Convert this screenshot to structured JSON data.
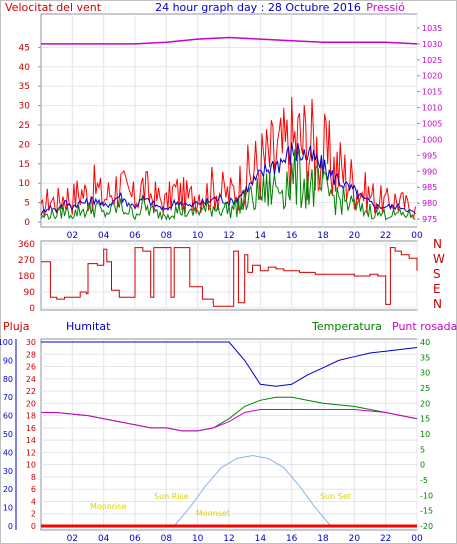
{
  "header": {
    "left_label": "Velocitat del vent",
    "title": "24 hour graph day : 28 Octubre 2016",
    "right_label": "Pressió"
  },
  "colors": {
    "wind": "#ff0000",
    "gust_avg": "#0000cc",
    "wind_green": "#008000",
    "pressure": "#cc00cc",
    "humidity": "#0000cc",
    "temperature": "#008000",
    "dewpoint": "#cc00cc",
    "solar": "#88b4f0",
    "rain": "#ff0000",
    "annotations": "#e0d000",
    "frame": "#9090a0"
  },
  "x_ticks": [
    "02",
    "04",
    "06",
    "08",
    "10",
    "12",
    "14",
    "16",
    "18",
    "20",
    "22",
    "00"
  ],
  "wind_axis": {
    "ticks": [
      "0",
      "5",
      "10",
      "15",
      "20",
      "25",
      "30",
      "35",
      "40",
      "45"
    ]
  },
  "pressure_axis": {
    "ticks": [
      "975",
      "980",
      "985",
      "990",
      "995",
      "1000",
      "1005",
      "1010",
      "1015",
      "1020",
      "1025",
      "1030",
      "1035"
    ]
  },
  "direction_axis": {
    "ticks": [
      "0",
      "90",
      "180",
      "270",
      "360"
    ],
    "compass": [
      "N",
      "W",
      "S",
      "E",
      "N"
    ]
  },
  "bottom_header": {
    "rain": "Pluja",
    "humidity": "Humitat",
    "temperature": "Temperatura",
    "dewpoint": "Punt rosada"
  },
  "humidity_axis": {
    "ticks": [
      "0",
      "10",
      "20",
      "30",
      "40",
      "50",
      "60",
      "70",
      "80",
      "90",
      "100"
    ]
  },
  "rain_axis": {
    "ticks": [
      "0",
      "2",
      "4",
      "6",
      "8",
      "10",
      "12",
      "14",
      "16",
      "18",
      "20",
      "22",
      "24",
      "26",
      "28",
      "30"
    ]
  },
  "temp_axis": {
    "ticks": [
      "-20",
      "-15",
      "-10",
      "-5",
      "0",
      "5",
      "10",
      "15",
      "20",
      "25",
      "30",
      "35",
      "40"
    ]
  },
  "annotations": {
    "moonrise": "Moonrise",
    "sunrise": "Sun Rise",
    "moonset": "Moonset",
    "sunset": "Sun Set"
  },
  "chart_data": [
    {
      "type": "line",
      "title": "24 hour graph day : 28 Octubre 2016",
      "x_unit": "hour",
      "xlim": [
        0,
        24
      ],
      "ylabel": "Velocitat del vent",
      "ylim": [
        0,
        50
      ],
      "y2label": "Pressió",
      "y2lim": [
        972.5,
        1037.5
      ],
      "series": [
        {
          "x": [
            0,
            0.5,
            1,
            1.5,
            2,
            2.5,
            3,
            3.5,
            4,
            4.5,
            5,
            5.5,
            6,
            6.5,
            7,
            7.5,
            8,
            8.5,
            9,
            9.5,
            10,
            10.5,
            11,
            11.5,
            12,
            12.5,
            13,
            13.5,
            14,
            14.5,
            15,
            15.5,
            16,
            16.5,
            17,
            17.5,
            18,
            18.5,
            19,
            19.5,
            20,
            20.5,
            21,
            21.5,
            22,
            22.5,
            23,
            23.5,
            24
          ],
          "values": [
            3,
            6,
            5,
            7,
            6,
            8,
            7,
            9,
            6,
            8,
            10,
            7,
            6,
            9,
            7,
            6,
            5,
            8,
            7,
            6,
            8,
            7,
            9,
            8,
            7,
            9,
            11,
            13,
            15,
            16,
            17,
            18,
            20,
            21,
            20,
            19,
            17,
            15,
            14,
            12,
            10,
            8,
            7,
            6,
            5,
            6,
            5,
            4,
            3
          ],
          "color": "#ff0000"
        },
        {
          "x": [
            0,
            0.5,
            1,
            1.5,
            2,
            2.5,
            3,
            3.5,
            4,
            4.5,
            5,
            5.5,
            6,
            6.5,
            7,
            7.5,
            8,
            8.5,
            9,
            9.5,
            10,
            10.5,
            11,
            11.5,
            12,
            12.5,
            13,
            13.5,
            14,
            14.5,
            15,
            15.5,
            16,
            16.5,
            17,
            17.5,
            18,
            18.5,
            19,
            19.5,
            20,
            20.5,
            21,
            21.5,
            22,
            22.5,
            23,
            23.5,
            24
          ],
          "values": [
            2,
            4,
            3,
            5,
            4,
            5,
            5,
            6,
            4,
            5,
            7,
            5,
            4,
            6,
            5,
            4,
            3,
            5,
            5,
            4,
            5,
            5,
            6,
            6,
            5,
            6,
            8,
            10,
            12,
            14,
            15,
            16,
            18,
            18,
            17,
            16,
            14,
            12,
            11,
            9,
            8,
            6,
            5,
            4,
            4,
            4,
            4,
            3,
            2
          ],
          "color": "#0000cc"
        },
        {
          "x": [
            0,
            0.5,
            1,
            1.5,
            2,
            2.5,
            3,
            3.5,
            4,
            4.5,
            5,
            5.5,
            6,
            6.5,
            7,
            7.5,
            8,
            8.5,
            9,
            9.5,
            10,
            10.5,
            11,
            11.5,
            12,
            12.5,
            13,
            13.5,
            14,
            14.5,
            15,
            15.5,
            16,
            16.5,
            17,
            17.5,
            18,
            18.5,
            19,
            19.5,
            20,
            20.5,
            21,
            21.5,
            22,
            22.5,
            23,
            23.5,
            24
          ],
          "values": [
            1,
            2,
            2,
            3,
            2,
            3,
            3,
            4,
            2,
            3,
            4,
            3,
            2,
            4,
            3,
            2,
            2,
            3,
            3,
            2,
            3,
            3,
            4,
            4,
            3,
            4,
            5,
            6,
            7,
            8,
            9,
            10,
            11,
            11,
            10,
            9,
            8,
            7,
            6,
            5,
            4,
            3,
            3,
            2,
            2,
            2,
            2,
            2,
            1
          ],
          "color": "#008000"
        },
        {
          "name": "Pressió",
          "axis": "y2",
          "x": [
            0,
            2,
            4,
            6,
            8,
            10,
            12,
            14,
            16,
            18,
            20,
            22,
            24
          ],
          "values": [
            1030,
            1030,
            1030,
            1030,
            1030.5,
            1031.5,
            1032,
            1031.5,
            1031,
            1030.5,
            1030.5,
            1030.5,
            1030
          ],
          "color": "#cc00cc"
        }
      ]
    },
    {
      "type": "line",
      "x_unit": "hour",
      "xlim": [
        0,
        24
      ],
      "ylim": [
        0,
        360
      ],
      "series": [
        {
          "x": [
            0,
            0.3,
            0.6,
            1,
            1.5,
            2,
            2.5,
            2.9,
            3,
            3.2,
            3.6,
            4,
            4.2,
            4.5,
            5,
            5.5,
            6,
            6.3,
            6.5,
            7,
            7.2,
            7.5,
            8,
            8.3,
            8.5,
            9,
            9.5,
            10,
            10.3,
            10.5,
            11,
            11.5,
            12,
            12.3,
            12.6,
            13,
            13.2,
            13.5,
            14,
            14.5,
            15,
            15.5,
            16,
            16.5,
            17,
            17.5,
            18,
            18.5,
            19,
            19.5,
            20,
            20.5,
            21,
            21.5,
            22,
            22.3,
            22.6,
            23,
            23.5,
            24
          ],
          "values": [
            260,
            260,
            60,
            50,
            60,
            60,
            90,
            80,
            250,
            250,
            240,
            330,
            260,
            100,
            60,
            60,
            340,
            340,
            320,
            60,
            340,
            340,
            340,
            60,
            340,
            340,
            120,
            120,
            50,
            50,
            10,
            10,
            10,
            320,
            30,
            300,
            200,
            240,
            210,
            230,
            220,
            210,
            210,
            200,
            200,
            190,
            190,
            190,
            190,
            190,
            180,
            180,
            190,
            180,
            20,
            340,
            320,
            300,
            280,
            210
          ],
          "color": "#cc0000"
        }
      ]
    },
    {
      "type": "line",
      "x_unit": "hour",
      "xlim": [
        0,
        24
      ],
      "ylabel": "Humitat",
      "ylim": [
        0,
        100
      ],
      "y2label": "Temperatura",
      "y2lim": [
        -20,
        40
      ],
      "y3label": "Pluja",
      "y3lim": [
        0,
        30
      ],
      "series": [
        {
          "name": "Humitat",
          "axis": "y",
          "x": [
            0,
            2,
            4,
            6,
            8,
            10,
            11,
            12,
            13,
            14,
            15,
            16,
            17,
            18,
            19,
            20,
            21,
            22,
            23,
            24
          ],
          "values": [
            100,
            100,
            100,
            100,
            100,
            100,
            100,
            100,
            90,
            77,
            76,
            77,
            82,
            86,
            90,
            92,
            94,
            95,
            96,
            97
          ],
          "color": "#0000cc"
        },
        {
          "name": "Temperatura",
          "axis": "y2",
          "x": [
            0,
            1,
            2,
            3,
            4,
            5,
            6,
            7,
            8,
            9,
            10,
            11,
            12,
            13,
            14,
            15,
            16,
            17,
            18,
            19,
            20,
            21,
            22,
            23,
            24
          ],
          "values": [
            17,
            17,
            16.5,
            16,
            15,
            14,
            13,
            12,
            12,
            11,
            11,
            12,
            15,
            19,
            21,
            22,
            22,
            21,
            20,
            19.5,
            19,
            18,
            17,
            16,
            15
          ],
          "color": "#008000"
        },
        {
          "name": "Punt rosada",
          "axis": "y2",
          "x": [
            0,
            1,
            2,
            3,
            4,
            5,
            6,
            7,
            8,
            9,
            10,
            11,
            12,
            13,
            14,
            15,
            16,
            17,
            18,
            19,
            20,
            21,
            22,
            23,
            24
          ],
          "values": [
            17,
            17,
            16.5,
            16,
            15,
            14,
            13,
            12,
            12,
            11,
            11,
            12,
            14,
            17,
            18,
            18,
            18,
            18,
            18,
            18,
            18,
            17.5,
            17,
            16,
            15
          ],
          "color": "#cc00cc"
        },
        {
          "name": "Solar",
          "axis": "y2",
          "x": [
            8.5,
            9.5,
            10.5,
            11.5,
            12.5,
            13.5,
            14.5,
            15.5,
            16.5,
            17.5,
            18.5
          ],
          "values": [
            -20,
            -14,
            -7,
            -1,
            2,
            3,
            2,
            -1,
            -7,
            -14,
            -20
          ],
          "color": "#88b4f0"
        },
        {
          "name": "Pluja",
          "axis": "y3",
          "x": [
            0,
            24
          ],
          "values": [
            0,
            0
          ],
          "color": "#ff0000"
        }
      ]
    }
  ]
}
